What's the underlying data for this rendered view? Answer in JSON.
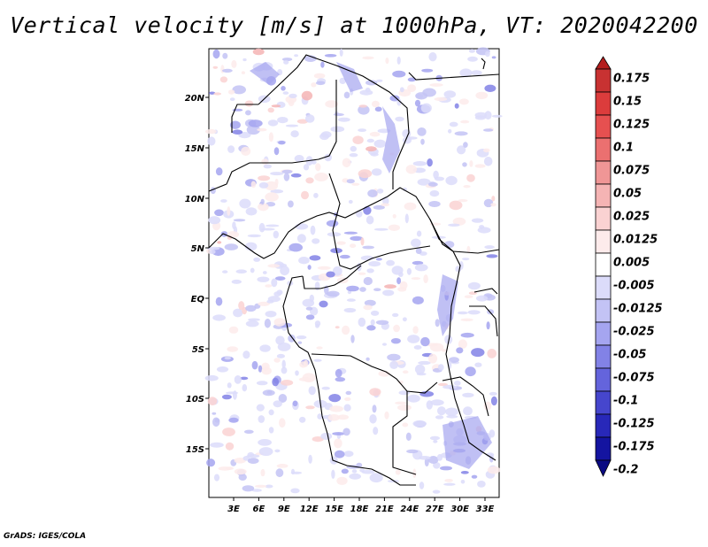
{
  "title": "Vertical velocity [m/s] at 1000hPa, VT: 2020042200",
  "map": {
    "lat_labels": [
      "20N",
      "15N",
      "10N",
      "5N",
      "EQ",
      "5S",
      "10S",
      "15S"
    ],
    "lon_labels": [
      "3E",
      "6E",
      "9E",
      "12E",
      "15E",
      "18E",
      "21E",
      "24E",
      "27E",
      "30E",
      "33E"
    ]
  },
  "colorbar": {
    "labels": [
      "0.175",
      "0.15",
      "0.125",
      "0.1",
      "0.075",
      "0.05",
      "0.025",
      "0.0125",
      "0.005",
      "-0.005",
      "-0.0125",
      "-0.025",
      "-0.05",
      "-0.075",
      "-0.1",
      "-0.125",
      "-0.175",
      "-0.2"
    ],
    "colors": [
      "#b41e1e",
      "#c83232",
      "#dc3c3c",
      "#e65050",
      "#eb7070",
      "#f09696",
      "#f5b4b4",
      "#fad2d2",
      "#fdebeb",
      "#ffffff",
      "#dcdcfa",
      "#c3c3f5",
      "#a5a5f0",
      "#8282e6",
      "#6464dc",
      "#4646cd",
      "#2828b9",
      "#1414a0",
      "#0a0a82"
    ]
  },
  "credit": "GrADS: IGES/COLA"
}
